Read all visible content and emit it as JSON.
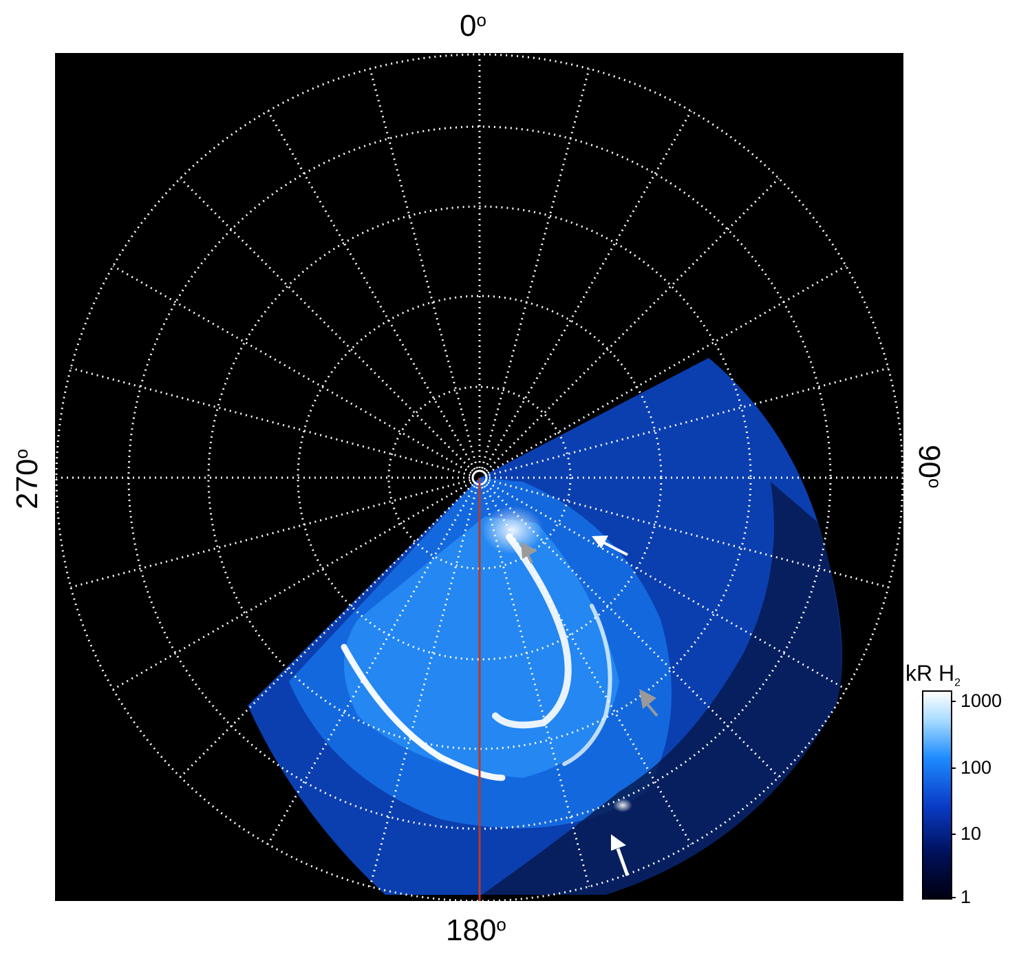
{
  "image": {
    "description_icon": "polar-auroral-projection",
    "colors": {
      "background": "#000000",
      "grid": "#ffffff",
      "meridian_line": "#c0391f",
      "arrow_white": "#ffffff",
      "arrow_gray": "#9a9a9a"
    }
  },
  "longitude_labels": {
    "top": "0",
    "right": "90",
    "bottom": "180",
    "left": "270",
    "degree_symbol": "o"
  },
  "colorbar": {
    "title_main": "kR H",
    "title_sub": "2",
    "scale": "log",
    "ticks": [
      "1000",
      "100",
      "10",
      "1"
    ],
    "colors": [
      "#000010",
      "#00105a",
      "#0a3cc8",
      "#1e8cff",
      "#a8dcff",
      "#ffffff"
    ]
  }
}
